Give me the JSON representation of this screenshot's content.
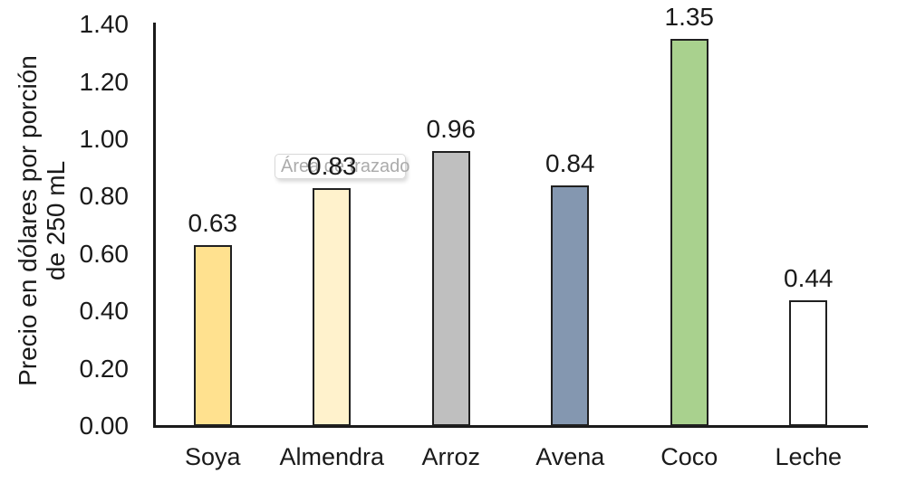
{
  "chart_data": {
    "type": "bar",
    "title": "",
    "xlabel": "",
    "ylabel": "Precio en dólares por porción de 250 mL",
    "ylabel_lines": [
      "Precio en dólares por porción",
      "de 250 mL"
    ],
    "categories": [
      "Soya",
      "Almendra",
      "Arroz",
      "Avena",
      "Coco",
      "Leche"
    ],
    "values": [
      0.63,
      0.83,
      0.96,
      0.84,
      1.35,
      0.44
    ],
    "value_labels": [
      "0.63",
      "0.83",
      "0.96",
      "0.84",
      "1.35",
      "0.44"
    ],
    "bar_colors": [
      "#FFE18F",
      "#FFF2CC",
      "#BFBFBF",
      "#8497B0",
      "#A9D18E",
      "#FFFFFF"
    ],
    "bar_border_color": "#202020",
    "axis_color": "#1a1a1a",
    "yticks": [
      "0.00",
      "0.20",
      "0.40",
      "0.60",
      "0.80",
      "1.00",
      "1.20",
      "1.40"
    ],
    "ylim": [
      0,
      1.4
    ],
    "grid": "off",
    "legend": "none"
  },
  "overlay": {
    "plot_area_tooltip": "Área de trazado"
  }
}
